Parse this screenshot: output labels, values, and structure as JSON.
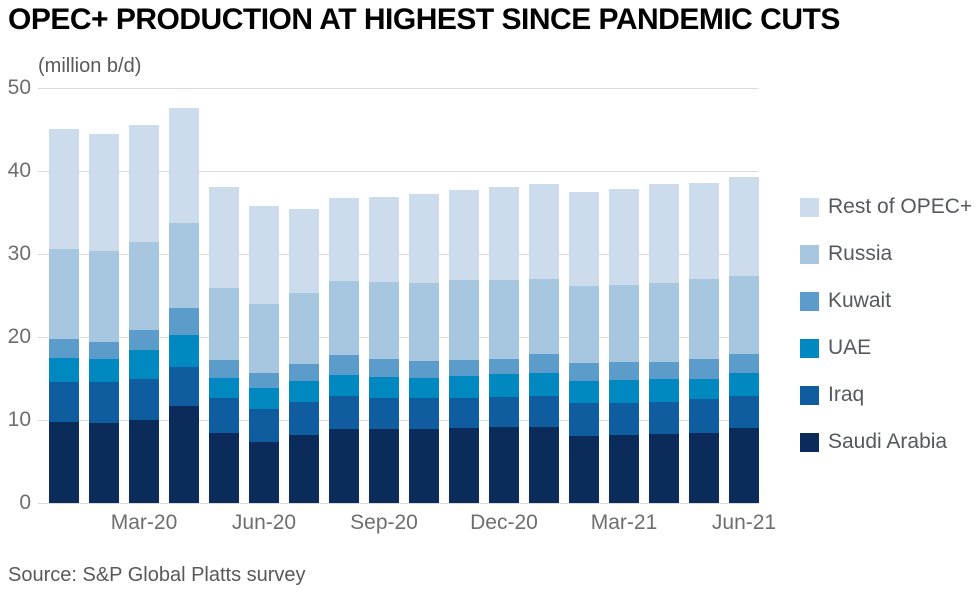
{
  "title": "OPEC+ PRODUCTION AT HIGHEST SINCE PANDEMIC CUTS",
  "y_axis_unit_label": "(million b/d)",
  "source": "Source: S&P Global Platts survey",
  "colors": {
    "title": "#000000",
    "grid": "#d9d9d9",
    "axis_text": "#6e6e6e",
    "secondary_text": "#595959",
    "background": "#ffffff"
  },
  "chart_data": {
    "type": "bar",
    "stacked": true,
    "title": "OPEC+ PRODUCTION AT HIGHEST SINCE PANDEMIC CUTS",
    "ylabel": "(million b/d)",
    "ylim": [
      0,
      50
    ],
    "yticks": [
      0,
      10,
      20,
      30,
      40,
      50
    ],
    "grid": true,
    "legend_position": "right",
    "categories": [
      "Jan-20",
      "Feb-20",
      "Mar-20",
      "Apr-20",
      "May-20",
      "Jun-20",
      "Jul-20",
      "Aug-20",
      "Sep-20",
      "Oct-20",
      "Nov-20",
      "Dec-20",
      "Jan-21",
      "Feb-21",
      "Mar-21",
      "Apr-21",
      "May-21",
      "Jun-21"
    ],
    "x_tick_marks": [
      {
        "label": "Mar-20",
        "category_index": 2
      },
      {
        "label": "Jun-20",
        "category_index": 5
      },
      {
        "label": "Sep-20",
        "category_index": 8
      },
      {
        "label": "Dec-20",
        "category_index": 11
      },
      {
        "label": "Mar-21",
        "category_index": 14
      },
      {
        "label": "Jun-21",
        "category_index": 17
      }
    ],
    "series": [
      {
        "name": "Saudi Arabia",
        "color": "#0b2b5b",
        "values": [
          9.8,
          9.6,
          10.0,
          11.7,
          8.4,
          7.4,
          8.2,
          8.9,
          8.9,
          8.9,
          9.0,
          9.1,
          9.1,
          8.1,
          8.2,
          8.3,
          8.4,
          9.0
        ]
      },
      {
        "name": "Iraq",
        "color": "#0f5d9f",
        "values": [
          4.8,
          5.0,
          4.9,
          4.7,
          4.2,
          3.9,
          4.0,
          4.0,
          3.8,
          3.7,
          3.7,
          3.7,
          3.8,
          3.9,
          3.9,
          3.9,
          4.1,
          3.9
        ]
      },
      {
        "name": "UAE",
        "color": "#0088c0",
        "values": [
          2.9,
          2.8,
          3.5,
          3.8,
          2.5,
          2.5,
          2.5,
          2.5,
          2.5,
          2.5,
          2.6,
          2.8,
          2.8,
          2.7,
          2.7,
          2.7,
          2.5,
          2.8
        ]
      },
      {
        "name": "Kuwait",
        "color": "#5b9ccb",
        "values": [
          2.3,
          2.0,
          2.4,
          3.3,
          2.1,
          1.9,
          2.1,
          2.4,
          2.1,
          2.0,
          1.9,
          1.8,
          2.2,
          2.2,
          2.2,
          2.1,
          2.3,
          2.2
        ]
      },
      {
        "name": "Russia",
        "color": "#a7c6df",
        "values": [
          10.8,
          11.0,
          10.7,
          10.2,
          8.7,
          8.3,
          8.5,
          8.9,
          9.3,
          9.4,
          9.7,
          9.5,
          9.1,
          9.2,
          9.3,
          9.5,
          9.7,
          9.5
        ]
      },
      {
        "name": "Rest of OPEC+",
        "color": "#ccdced",
        "values": [
          14.5,
          14.1,
          14.1,
          13.9,
          12.2,
          11.8,
          10.1,
          10.1,
          10.3,
          10.7,
          10.8,
          11.2,
          11.4,
          11.4,
          11.5,
          12.0,
          11.6,
          11.9
        ]
      }
    ],
    "totals": [
      45.1,
      44.5,
      45.6,
      47.6,
      38.1,
      35.8,
      35.4,
      36.8,
      36.9,
      37.2,
      37.7,
      38.1,
      38.4,
      37.5,
      37.8,
      38.5,
      38.6,
      39.3
    ],
    "legend_order_top_to_bottom": [
      "Rest of OPEC+",
      "Russia",
      "Kuwait",
      "UAE",
      "Iraq",
      "Saudi Arabia"
    ]
  }
}
